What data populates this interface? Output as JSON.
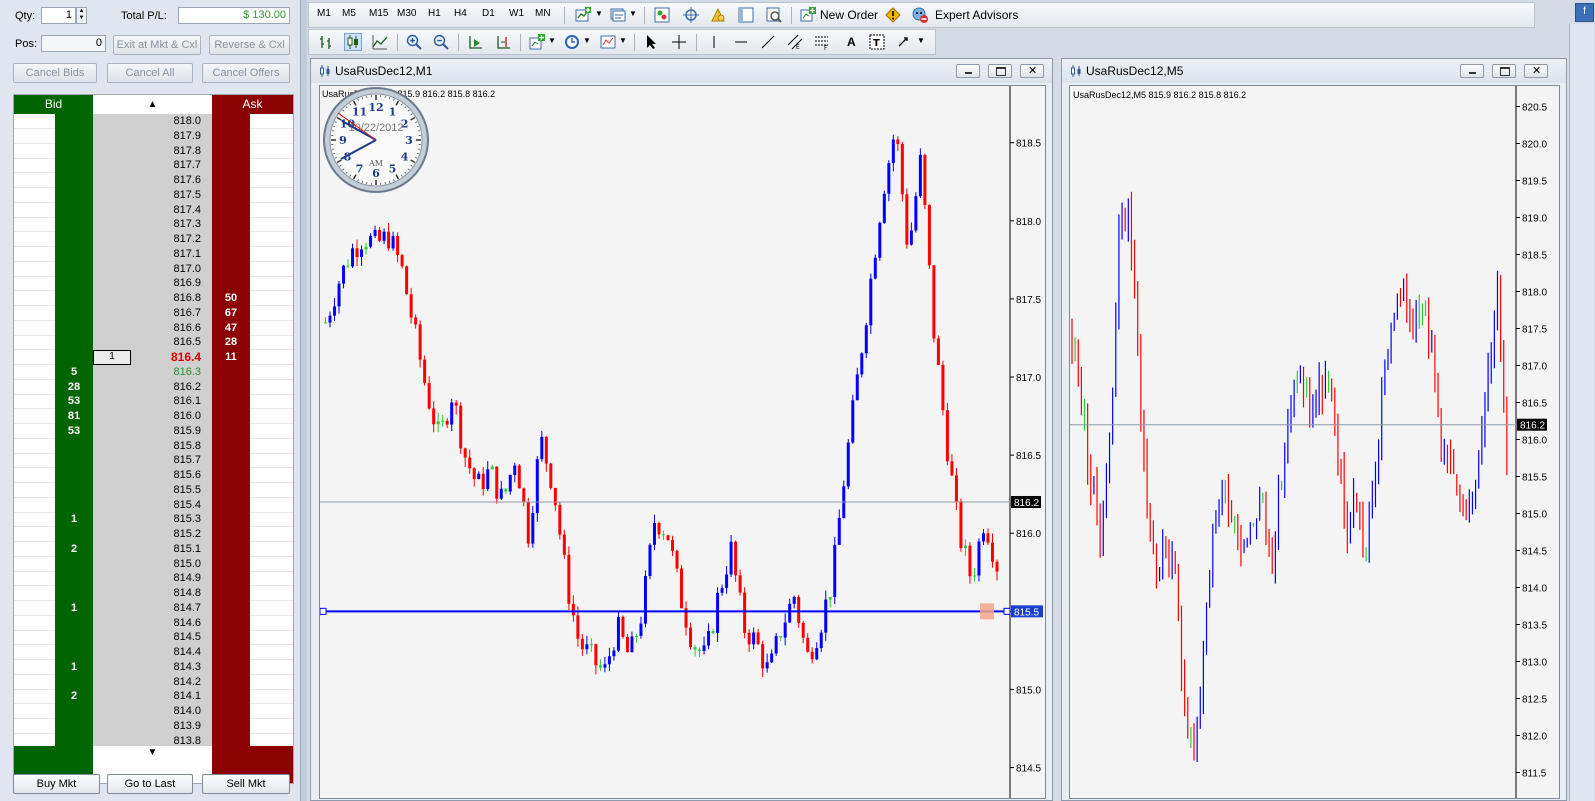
{
  "dom": {
    "qty_label": "Qty:",
    "qty_value": "1",
    "total_pl_label": "Total P/L:",
    "total_pl_value": "$ 130.00",
    "pos_label": "Pos:",
    "pos_value": "0",
    "exit_button": "Exit at Mkt & Cxl",
    "reverse_button": "Reverse & Cxl",
    "cancel_bids": "Cancel Bids",
    "cancel_all": "Cancel All",
    "cancel_offers": "Cancel Offers",
    "bid_header": "Bid",
    "ask_header": "Ask",
    "buy_mkt": "Buy Mkt",
    "go_to_last": "Go to Last",
    "sell_mkt": "Sell Mkt",
    "colors": {
      "bid": "#006400",
      "ask": "#8b0000",
      "last_price": "#e00000",
      "best_bid_price": "#2e8b2e",
      "pl": "#2e9b2e"
    },
    "rows": [
      {
        "price": "818.0",
        "bid": "",
        "ask": ""
      },
      {
        "price": "817.9",
        "bid": "",
        "ask": ""
      },
      {
        "price": "817.8",
        "bid": "",
        "ask": ""
      },
      {
        "price": "817.7",
        "bid": "",
        "ask": ""
      },
      {
        "price": "817.6",
        "bid": "",
        "ask": ""
      },
      {
        "price": "817.5",
        "bid": "",
        "ask": ""
      },
      {
        "price": "817.4",
        "bid": "",
        "ask": ""
      },
      {
        "price": "817.3",
        "bid": "",
        "ask": ""
      },
      {
        "price": "817.2",
        "bid": "",
        "ask": ""
      },
      {
        "price": "817.1",
        "bid": "",
        "ask": ""
      },
      {
        "price": "817.0",
        "bid": "",
        "ask": ""
      },
      {
        "price": "816.9",
        "bid": "",
        "ask": ""
      },
      {
        "price": "816.8",
        "bid": "",
        "ask": "50"
      },
      {
        "price": "816.7",
        "bid": "",
        "ask": "67"
      },
      {
        "price": "816.6",
        "bid": "",
        "ask": "47"
      },
      {
        "price": "816.5",
        "bid": "",
        "ask": "28"
      },
      {
        "price": "816.4",
        "bid": "",
        "ask": "11",
        "my": "1",
        "last": true
      },
      {
        "price": "816.3",
        "bid": "5",
        "ask": "",
        "bestbid": true
      },
      {
        "price": "816.2",
        "bid": "28",
        "ask": ""
      },
      {
        "price": "816.1",
        "bid": "53",
        "ask": ""
      },
      {
        "price": "816.0",
        "bid": "81",
        "ask": ""
      },
      {
        "price": "815.9",
        "bid": "53",
        "ask": ""
      },
      {
        "price": "815.8",
        "bid": "",
        "ask": ""
      },
      {
        "price": "815.7",
        "bid": "",
        "ask": ""
      },
      {
        "price": "815.6",
        "bid": "",
        "ask": ""
      },
      {
        "price": "815.5",
        "bid": "",
        "ask": ""
      },
      {
        "price": "815.4",
        "bid": "",
        "ask": ""
      },
      {
        "price": "815.3",
        "bid": "1",
        "ask": ""
      },
      {
        "price": "815.2",
        "bid": "",
        "ask": ""
      },
      {
        "price": "815.1",
        "bid": "2",
        "ask": ""
      },
      {
        "price": "815.0",
        "bid": "",
        "ask": ""
      },
      {
        "price": "814.9",
        "bid": "",
        "ask": ""
      },
      {
        "price": "814.8",
        "bid": "",
        "ask": ""
      },
      {
        "price": "814.7",
        "bid": "1",
        "ask": ""
      },
      {
        "price": "814.6",
        "bid": "",
        "ask": ""
      },
      {
        "price": "814.5",
        "bid": "",
        "ask": ""
      },
      {
        "price": "814.4",
        "bid": "",
        "ask": ""
      },
      {
        "price": "814.3",
        "bid": "1",
        "ask": ""
      },
      {
        "price": "814.2",
        "bid": "",
        "ask": ""
      },
      {
        "price": "814.1",
        "bid": "2",
        "ask": ""
      },
      {
        "price": "814.0",
        "bid": "",
        "ask": ""
      },
      {
        "price": "813.9",
        "bid": "",
        "ask": ""
      },
      {
        "price": "813.8",
        "bid": "",
        "ask": ""
      }
    ]
  },
  "toolbar": {
    "timeframes": [
      "M1",
      "M5",
      "M15",
      "M30",
      "H1",
      "H4",
      "D1",
      "W1",
      "MN"
    ],
    "new_order": "New Order",
    "expert_advisors": "Expert Advisors"
  },
  "chart1": {
    "window_title": "UsaRusDec12,M1",
    "info": "UsaRusDec12,M1  815.9 816.2 815.8 816.2",
    "axis_labels": [
      "818.5",
      "818.0",
      "817.5",
      "817.0",
      "816.5",
      "816.0",
      "815.5",
      "815.0",
      "814.5"
    ],
    "ylim": [
      814.35,
      818.85
    ],
    "current_price": "816.2",
    "order_line_price": "815.5",
    "clock": {
      "date": "10/22/2012",
      "ampm": "AM",
      "numbers": [
        "12",
        "1",
        "2",
        "3",
        "4",
        "5",
        "6",
        "7",
        "8",
        "9",
        "10",
        "11"
      ]
    },
    "colors": {
      "up": "#0000ff",
      "down": "#ff0000",
      "neutral": "#33cc33",
      "order_line": "#0000ff"
    }
  },
  "chart2": {
    "window_title": "UsaRusDec12,M5",
    "info": "UsaRusDec12,M5  815.9 816.2 815.8 816.2",
    "axis_labels": [
      "820.5",
      "820.0",
      "819.5",
      "819.0",
      "818.5",
      "818.0",
      "817.5",
      "817.0",
      "816.5",
      "816.0",
      "815.5",
      "815.0",
      "814.5",
      "814.0",
      "813.5",
      "813.0",
      "812.5",
      "812.0",
      "811.5"
    ],
    "ylim": [
      811.25,
      820.75
    ],
    "current_price": "816.2"
  }
}
